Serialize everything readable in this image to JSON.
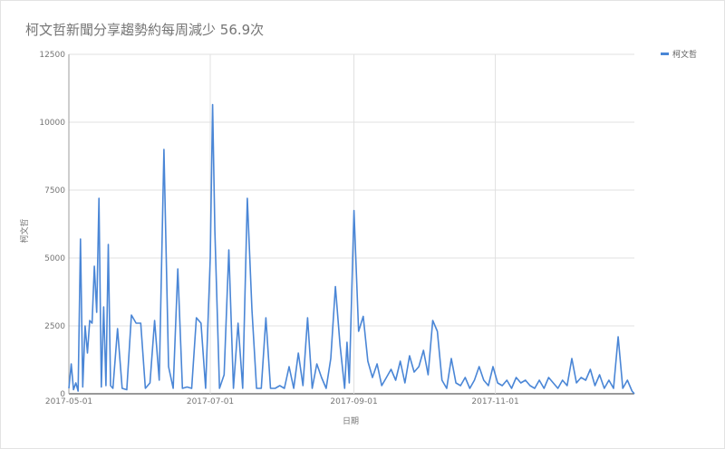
{
  "chart_data": {
    "type": "line",
    "title": "柯文哲新聞分享趨勢約每周減少 56.9次",
    "xlabel": "日期",
    "ylabel": "柯文哲",
    "legend": {
      "placement": "top-right",
      "entries": [
        "柯文哲"
      ]
    },
    "ylim": [
      0,
      12500
    ],
    "xlim": [
      "2017-05-01",
      "2017-12-31"
    ],
    "y_ticks": [
      "0",
      "2500",
      "5000",
      "7500",
      "10000",
      "12500"
    ],
    "y_tick_values": [
      0,
      2500,
      5000,
      7500,
      10000,
      12500
    ],
    "x_ticks": [
      "2017-05-01",
      "2017-07-01",
      "2017-09-01",
      "2017-11-01"
    ],
    "grid": true,
    "color": "#4a86d6",
    "series": [
      {
        "name": "柯文哲",
        "x": [
          "2017-05-01",
          "2017-05-02",
          "2017-05-03",
          "2017-05-04",
          "2017-05-05",
          "2017-05-06",
          "2017-05-07",
          "2017-05-08",
          "2017-05-09",
          "2017-05-10",
          "2017-05-11",
          "2017-05-12",
          "2017-05-13",
          "2017-05-14",
          "2017-05-15",
          "2017-05-16",
          "2017-05-17",
          "2017-05-18",
          "2017-05-19",
          "2017-05-20",
          "2017-05-22",
          "2017-05-24",
          "2017-05-26",
          "2017-05-28",
          "2017-05-30",
          "2017-06-01",
          "2017-06-03",
          "2017-06-05",
          "2017-06-07",
          "2017-06-09",
          "2017-06-11",
          "2017-06-13",
          "2017-06-15",
          "2017-06-17",
          "2017-06-19",
          "2017-06-21",
          "2017-06-23",
          "2017-06-25",
          "2017-06-27",
          "2017-06-29",
          "2017-07-01",
          "2017-07-02",
          "2017-07-03",
          "2017-07-05",
          "2017-07-07",
          "2017-07-09",
          "2017-07-11",
          "2017-07-13",
          "2017-07-15",
          "2017-07-17",
          "2017-07-19",
          "2017-07-21",
          "2017-07-23",
          "2017-07-25",
          "2017-07-27",
          "2017-07-29",
          "2017-07-31",
          "2017-08-02",
          "2017-08-04",
          "2017-08-06",
          "2017-08-08",
          "2017-08-10",
          "2017-08-12",
          "2017-08-14",
          "2017-08-16",
          "2017-08-18",
          "2017-08-20",
          "2017-08-22",
          "2017-08-24",
          "2017-08-26",
          "2017-08-28",
          "2017-08-29",
          "2017-08-30",
          "2017-09-01",
          "2017-09-03",
          "2017-09-05",
          "2017-09-07",
          "2017-09-09",
          "2017-09-11",
          "2017-09-13",
          "2017-09-15",
          "2017-09-17",
          "2017-09-19",
          "2017-09-21",
          "2017-09-23",
          "2017-09-25",
          "2017-09-27",
          "2017-09-29",
          "2017-10-01",
          "2017-10-03",
          "2017-10-05",
          "2017-10-07",
          "2017-10-09",
          "2017-10-11",
          "2017-10-13",
          "2017-10-15",
          "2017-10-17",
          "2017-10-19",
          "2017-10-21",
          "2017-10-23",
          "2017-10-25",
          "2017-10-27",
          "2017-10-29",
          "2017-10-31",
          "2017-11-02",
          "2017-11-04",
          "2017-11-06",
          "2017-11-08",
          "2017-11-10",
          "2017-11-12",
          "2017-11-14",
          "2017-11-16",
          "2017-11-18",
          "2017-11-20",
          "2017-11-22",
          "2017-11-24",
          "2017-11-26",
          "2017-11-28",
          "2017-11-30",
          "2017-12-02",
          "2017-12-04",
          "2017-12-06",
          "2017-12-08",
          "2017-12-10",
          "2017-12-12",
          "2017-12-14",
          "2017-12-16",
          "2017-12-18",
          "2017-12-20",
          "2017-12-22",
          "2017-12-24",
          "2017-12-26",
          "2017-12-28",
          "2017-12-30",
          "2017-12-31"
        ],
        "y": [
          200,
          1100,
          150,
          400,
          100,
          5700,
          250,
          2500,
          1500,
          2700,
          2600,
          4700,
          3000,
          7200,
          250,
          3200,
          300,
          5500,
          300,
          200,
          2400,
          200,
          150,
          2900,
          2600,
          2600,
          200,
          400,
          2700,
          500,
          9000,
          1000,
          200,
          4600,
          200,
          250,
          200,
          2800,
          2600,
          200,
          5000,
          10650,
          6000,
          200,
          700,
          5300,
          200,
          2600,
          200,
          7200,
          3100,
          200,
          200,
          2800,
          200,
          200,
          300,
          200,
          1000,
          200,
          1500,
          300,
          2800,
          200,
          1100,
          600,
          200,
          1300,
          3950,
          1800,
          200,
          1900,
          400,
          6750,
          2300,
          2850,
          1200,
          600,
          1100,
          300,
          600,
          900,
          500,
          1200,
          400,
          1400,
          800,
          1000,
          1600,
          700,
          2700,
          2300,
          500,
          200,
          1300,
          400,
          300,
          600,
          200,
          500,
          1000,
          500,
          300,
          1000,
          400,
          300,
          500,
          200,
          600,
          400,
          500,
          300,
          200,
          500,
          200,
          600,
          400,
          200,
          500,
          300,
          1300,
          400,
          600,
          500,
          900,
          300,
          700,
          200,
          500,
          200,
          2100,
          200,
          500,
          100,
          0
        ]
      }
    ]
  }
}
